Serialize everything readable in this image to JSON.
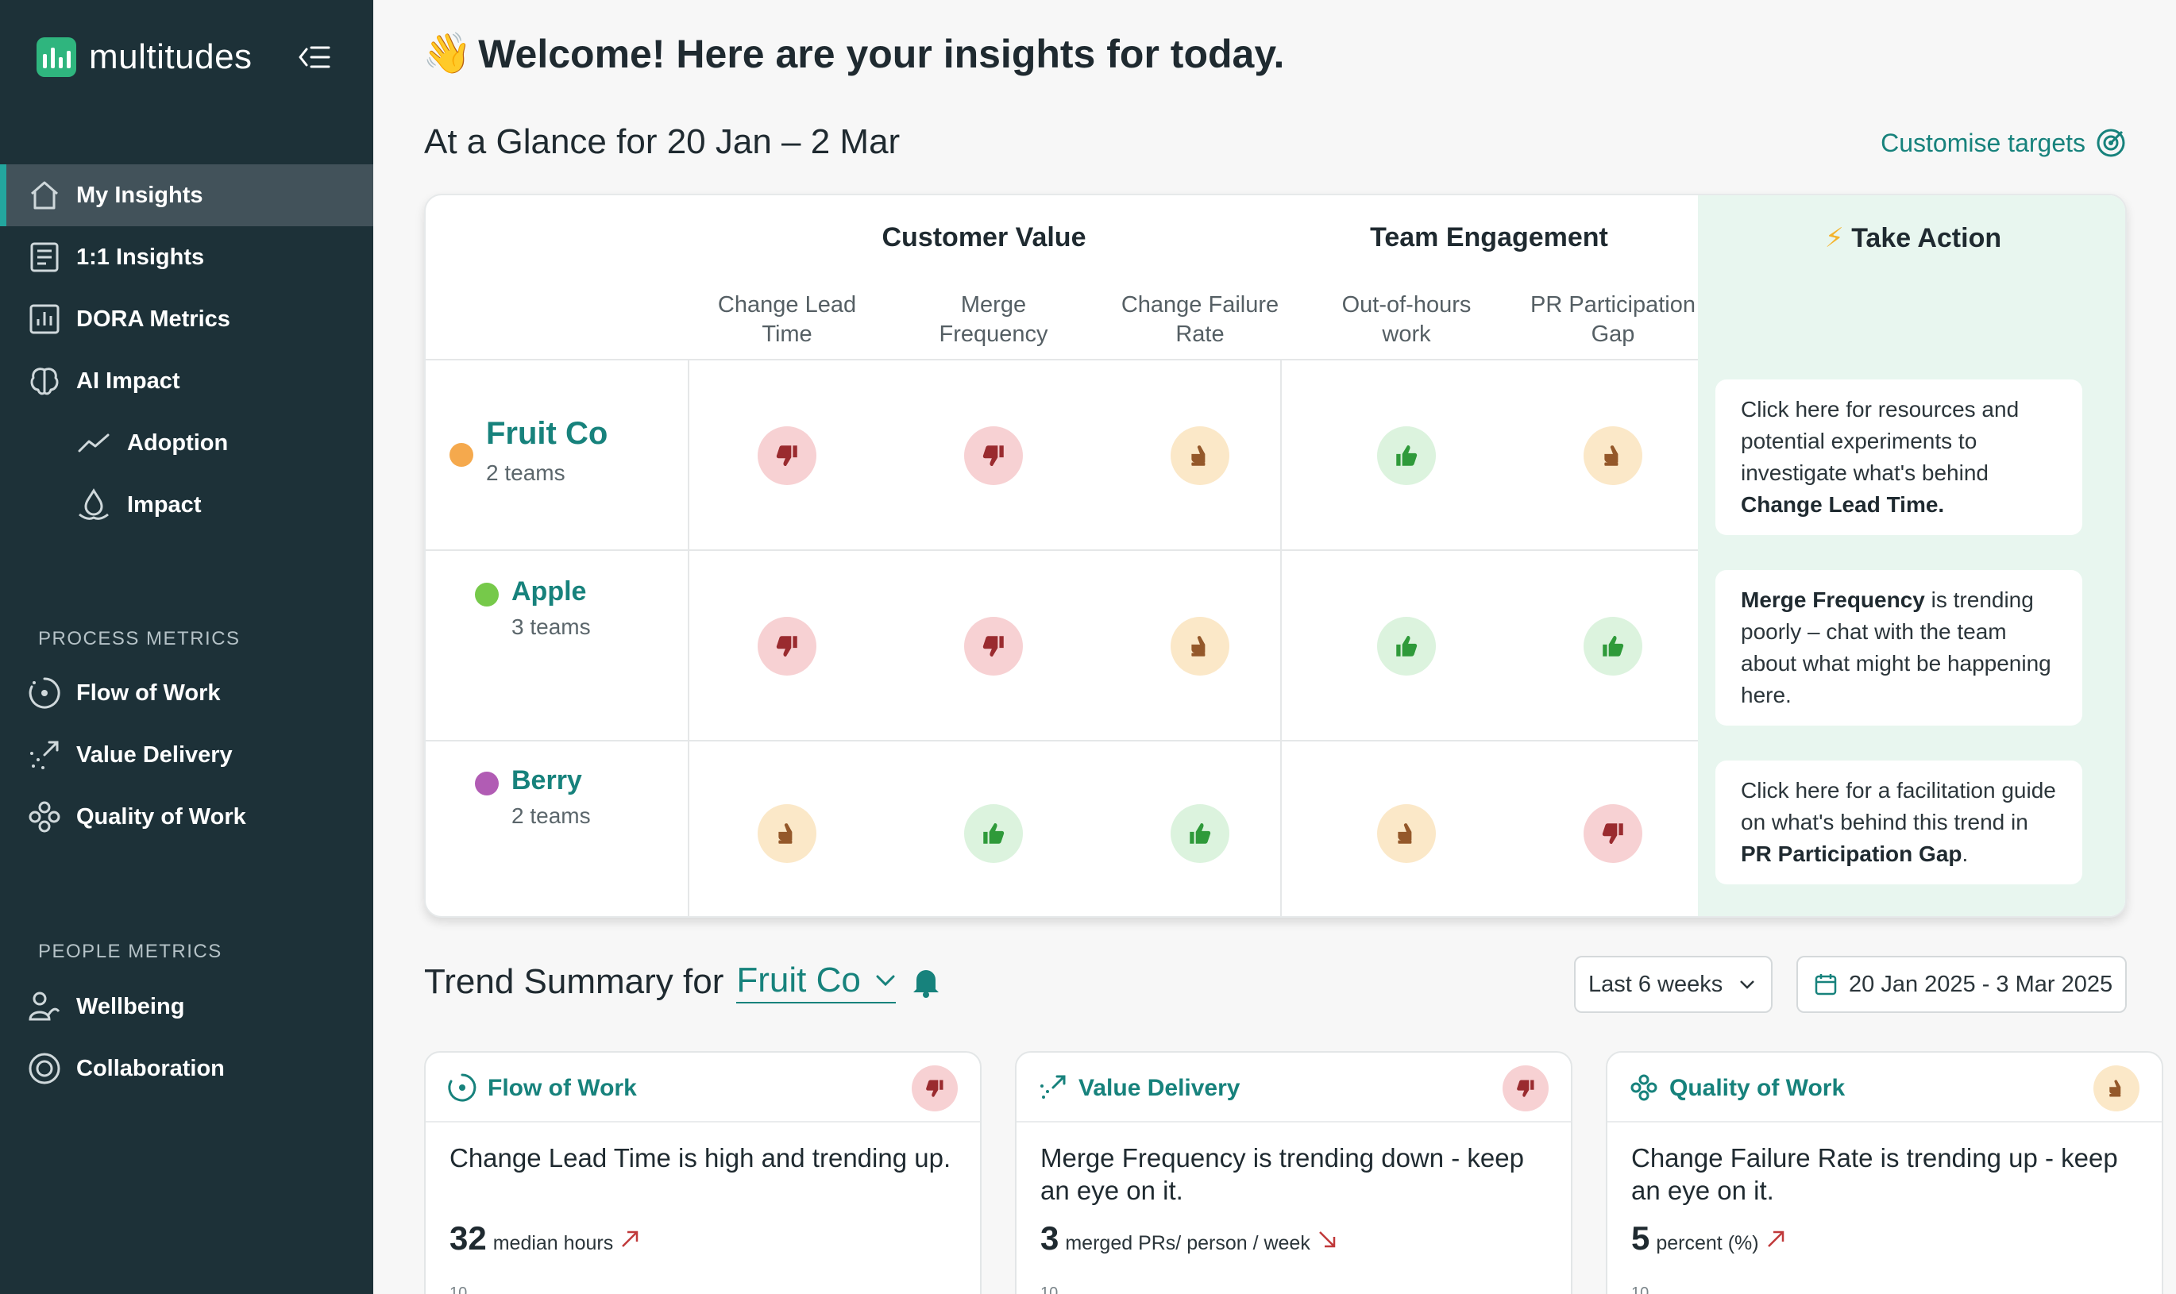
{
  "app": {
    "name": "multitudes"
  },
  "sidebar": {
    "items": [
      {
        "label": "My Insights"
      },
      {
        "label": "1:1 Insights"
      },
      {
        "label": "DORA Metrics"
      },
      {
        "label": "AI Impact"
      },
      {
        "label": "Adoption"
      },
      {
        "label": "Impact"
      }
    ],
    "process_section": "PROCESS METRICS",
    "process_items": [
      {
        "label": "Flow of Work"
      },
      {
        "label": "Value Delivery"
      },
      {
        "label": "Quality of Work"
      }
    ],
    "people_section": "PEOPLE METRICS",
    "people_items": [
      {
        "label": "Wellbeing"
      },
      {
        "label": "Collaboration"
      }
    ]
  },
  "header": {
    "emoji": "👋",
    "welcome": "Welcome! Here are your insights for today."
  },
  "glance": {
    "title": "At a Glance for 20 Jan – 2 Mar",
    "customise": "Customise targets",
    "groups": {
      "customer": "Customer Value",
      "team": "Team Engagement",
      "action": "Take Action"
    },
    "columns": [
      {
        "l1": "Change Lead",
        "l2": "Time"
      },
      {
        "l1": "Merge",
        "l2": "Frequency"
      },
      {
        "l1": "Change Failure",
        "l2": "Rate"
      },
      {
        "l1": "Out-of-hours",
        "l2": "work"
      },
      {
        "l1": "PR Participation",
        "l2": "Gap"
      }
    ],
    "rows": [
      {
        "name": "Fruit Co",
        "teams": "2 teams",
        "color": "#f5a94d",
        "statuses": [
          "down",
          "down",
          "neutral",
          "up",
          "neutral"
        ]
      },
      {
        "name": "Apple",
        "teams": "3 teams",
        "color": "#76c94a",
        "statuses": [
          "down",
          "down",
          "neutral",
          "up",
          "up"
        ]
      },
      {
        "name": "Berry",
        "teams": "2 teams",
        "color": "#b15cb4",
        "statuses": [
          "neutral",
          "up",
          "up",
          "neutral",
          "down"
        ]
      }
    ],
    "actions": [
      {
        "pre": "Click here for resources and potential experiments to investigate what's behind ",
        "bold": "Change Lead Time.",
        "post": ""
      },
      {
        "pre": "",
        "bold": "Merge Frequency",
        "post": " is trending poorly – chat with the team about what might be happening here."
      },
      {
        "pre": "Click here for a facilitation guide on what's behind this trend in ",
        "bold": "PR Participation Gap",
        "post": "."
      }
    ]
  },
  "trend": {
    "title": "Trend Summary for",
    "selected": "Fruit Co",
    "range": "Last 6 weeks",
    "dates": "20 Jan 2025 - 3 Mar 2025",
    "cards": [
      {
        "name": "Flow of Work",
        "status": "down",
        "desc": "Change Lead Time is high and trending up.",
        "value": "32",
        "unit": "median hours",
        "trend_direction": "up",
        "tick": "10"
      },
      {
        "name": "Value Delivery",
        "status": "down",
        "desc": "Merge Frequency is trending down - keep an eye on it.",
        "value": "3",
        "unit": "merged PRs/ person / week",
        "trend_direction": "down",
        "tick": "10"
      },
      {
        "name": "Quality of Work",
        "status": "neutral",
        "desc": "Change Failure Rate is trending up - keep an eye on it.",
        "value": "5",
        "unit": "percent (%)",
        "trend_direction": "up",
        "tick": "10"
      }
    ]
  },
  "colors": {
    "sidebar": "#1d3138",
    "accent": "#17827c",
    "bad": "#f7d1d3",
    "good": "#dcf3de",
    "neutral": "#fbe8c8"
  }
}
